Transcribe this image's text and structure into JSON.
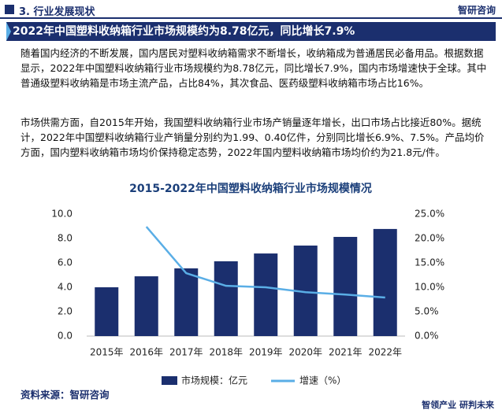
{
  "header": {
    "section": "3. 行业发展现状",
    "logo": "智研咨询"
  },
  "banner": "2022年中国塑料收纳箱行业市场规模约为8.78亿元，同比增长7.9%",
  "paragraphs": [
    "随着国内经济的不断发展，国内居民对塑料收纳箱需求不断增长，收纳箱成为普通居民必备用品。根据数据显示，2022年中国塑料收纳箱行业市场规模约为8.78亿元，同比增长7.9%，国内市场增速快于全球。其中普通级塑料收纳箱是市场主流产品，占比84%，其次食品、医药级塑料收纳箱市场占比16%。",
    "市场供需方面，自2015年开始，我国塑料收纳箱行业市场产销量逐年增长，出口市场占比接近80%。据统计，2022年中国塑料收纳箱行业产销量分别约为1.99、0.40亿件，分别同比增长6.9%、7.5%。产品均价方面，国内塑料收纳箱市场均价保持稳定态势，2022年国内塑料收纳箱市场均价约为21.8元/件。"
  ],
  "chart_data": {
    "type": "bar",
    "title": "2015-2022年中国塑料收纳箱行业市场规模情况",
    "categories": [
      "2015年",
      "2016年",
      "2017年",
      "2018年",
      "2019年",
      "2020年",
      "2021年",
      "2022年"
    ],
    "series": [
      {
        "name": "市场规模：亿元",
        "type": "bar",
        "color": "#1b2f6e",
        "values": [
          4.0,
          4.9,
          5.55,
          6.13,
          6.77,
          7.42,
          8.13,
          8.78
        ]
      },
      {
        "name": "增速（%）",
        "type": "line",
        "axis": "y2",
        "color": "#5aaee6",
        "values": [
          null,
          22.4,
          12.9,
          10.3,
          10.0,
          9.0,
          8.5,
          7.9
        ]
      }
    ],
    "ylim": [
      0,
      10
    ],
    "yticks": [
      {
        "value": 0,
        "label": "0.0"
      },
      {
        "value": 2,
        "label": "2.0"
      },
      {
        "value": 4,
        "label": "4.0"
      },
      {
        "value": 6,
        "label": "6.0"
      },
      {
        "value": 8,
        "label": "8.0"
      },
      {
        "value": 10,
        "label": "10.0"
      }
    ],
    "y2lim": [
      0,
      25
    ],
    "y2ticks": [
      {
        "value": 0,
        "label": "0.0%"
      },
      {
        "value": 5,
        "label": "5.0%"
      },
      {
        "value": 10,
        "label": "10.0%"
      },
      {
        "value": 15,
        "label": "15.0%"
      },
      {
        "value": 20,
        "label": "20.0%"
      },
      {
        "value": 25,
        "label": "25.0%"
      }
    ],
    "legend": "bottom",
    "grid": false
  },
  "source": "资料来源：智研咨询",
  "footer": "智领产业 研判未来"
}
